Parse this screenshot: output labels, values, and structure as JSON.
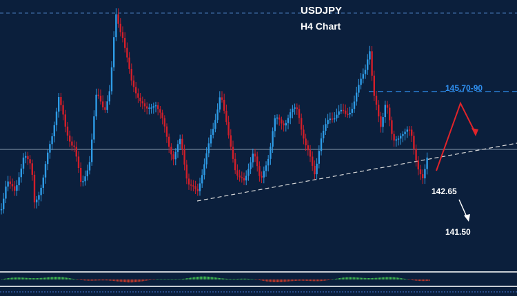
{
  "chart_data": {
    "type": "candlestick",
    "title": "USDJPY",
    "subtitle": "H4 Chart",
    "resistance_label": "145.70-90",
    "levels": [
      {
        "label": "142.65",
        "value": 142.65
      },
      {
        "label": "141.50",
        "value": 141.5
      }
    ],
    "scenario": {
      "bullish_color": "#e0242a",
      "bearish_color": "#ffffff"
    },
    "colors": {
      "background": "#0b1f3c",
      "bull": "#2e9be6",
      "bear": "#d11f2a",
      "resistance_line": "#2f8ff0",
      "trendline": "#d9d9d9",
      "osc_positive": "#3fb950",
      "osc_negative": "#c0392b"
    }
  }
}
